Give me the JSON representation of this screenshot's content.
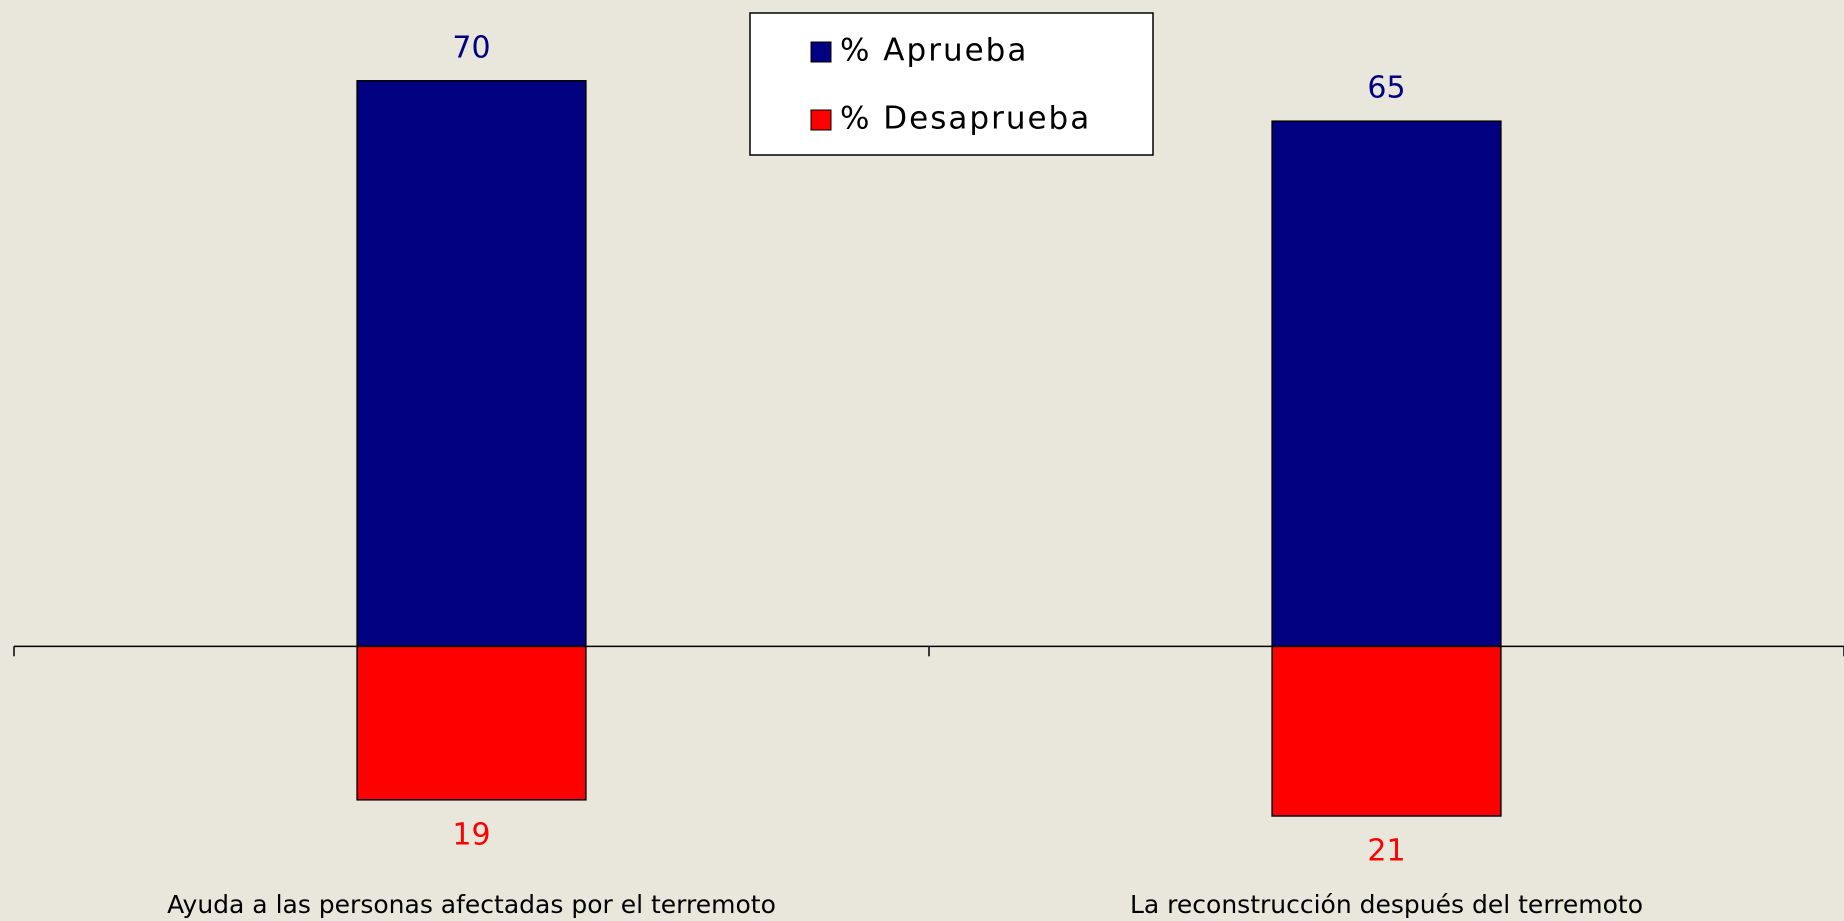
{
  "chart_data": {
    "type": "bar",
    "stacked": true,
    "categories": [
      "Ayuda a las personas afectadas por el terremoto",
      "La reconstrucción después del terremoto"
    ],
    "series": [
      {
        "name": "% Aprueba",
        "color": "#000080",
        "values": [
          70,
          65
        ]
      },
      {
        "name": "% Desaprueba",
        "color": "#ff0000",
        "values": [
          -19,
          -21
        ],
        "value_labels": [
          "19",
          "21"
        ]
      }
    ],
    "ylim": [
      -34,
      80
    ]
  }
}
